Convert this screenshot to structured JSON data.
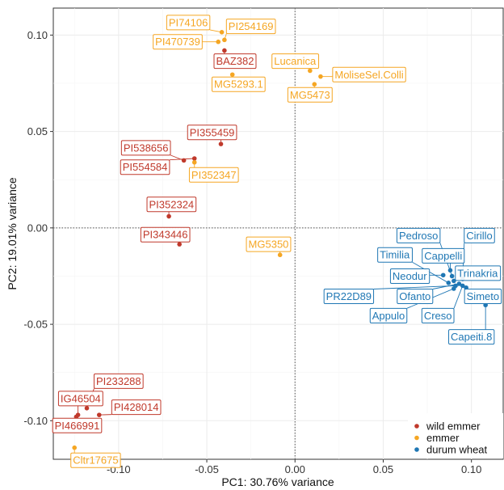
{
  "chart_data": {
    "type": "scatter",
    "xlabel": "PC1: 30.76% variance",
    "ylabel": "PC2: 19.01% variance",
    "xlim": [
      -0.137,
      0.118
    ],
    "ylim": [
      -0.12,
      0.114
    ],
    "xticks": [
      -0.1,
      -0.05,
      0.0,
      0.05,
      0.1
    ],
    "yticks": [
      -0.1,
      -0.05,
      0.0,
      0.05,
      0.1
    ],
    "xtick_labels": [
      "-0.10",
      "-0.05",
      "0.00",
      "0.05",
      "0.10"
    ],
    "ytick_labels": [
      "-0.10",
      "-0.05",
      "0.00",
      "0.05",
      "0.10"
    ],
    "grid": true,
    "zero_lines": true,
    "legend_position": "bottom-right",
    "series": [
      {
        "name": "wild emmer",
        "color": "#c0392b",
        "points": [
          {
            "label": "BAZ382",
            "x": -0.04,
            "y": 0.092,
            "lx": -0.034,
            "ly": 0.0865
          },
          {
            "label": "PI355459",
            "x": -0.042,
            "y": 0.0435,
            "lx": -0.047,
            "ly": 0.0495
          },
          {
            "label": "PI538656",
            "x": -0.063,
            "y": 0.035,
            "lx": -0.0845,
            "ly": 0.0415
          },
          {
            "label": "PI554584",
            "x": -0.057,
            "y": 0.036,
            "lx": -0.085,
            "ly": 0.0315
          },
          {
            "label": "PI352324",
            "x": -0.0715,
            "y": 0.006,
            "lx": -0.07,
            "ly": 0.0122
          },
          {
            "label": "PI343446",
            "x": -0.0655,
            "y": -0.0085,
            "lx": -0.0735,
            "ly": -0.0035
          },
          {
            "label": "PI233288",
            "x": -0.118,
            "y": -0.0935,
            "lx": -0.1,
            "ly": -0.0795
          },
          {
            "label": "IG46504",
            "x": -0.123,
            "y": -0.097,
            "lx": -0.1215,
            "ly": -0.0885
          },
          {
            "label": "PI428014",
            "x": -0.111,
            "y": -0.097,
            "lx": -0.09,
            "ly": -0.093
          },
          {
            "label": "PI466991",
            "x": -0.124,
            "y": -0.098,
            "lx": -0.1235,
            "ly": -0.1025
          }
        ]
      },
      {
        "name": "emmer",
        "color": "#f5a623",
        "points": [
          {
            "label": "PI74106",
            "x": -0.0415,
            "y": 0.1015,
            "lx": -0.0605,
            "ly": 0.1065
          },
          {
            "label": "PI254169",
            "x": -0.04,
            "y": 0.0975,
            "lx": -0.025,
            "ly": 0.1045
          },
          {
            "label": "PI470739",
            "x": -0.0435,
            "y": 0.0965,
            "lx": -0.0665,
            "ly": 0.0965
          },
          {
            "label": "MG5293.1",
            "x": -0.0355,
            "y": 0.0795,
            "lx": -0.032,
            "ly": 0.0745
          },
          {
            "label": "Lucanica",
            "x": 0.0085,
            "y": 0.0815,
            "lx": 0.0,
            "ly": 0.0865
          },
          {
            "label": "MoliseSel.Colli",
            "x": 0.0145,
            "y": 0.0785,
            "lx": 0.042,
            "ly": 0.0795
          },
          {
            "label": "MG5473",
            "x": 0.011,
            "y": 0.0745,
            "lx": 0.0085,
            "ly": 0.069
          },
          {
            "label": "PI352347",
            "x": -0.057,
            "y": 0.034,
            "lx": -0.046,
            "ly": 0.0275
          },
          {
            "label": "MG5350",
            "x": -0.0085,
            "y": -0.014,
            "lx": -0.015,
            "ly": -0.0085
          },
          {
            "label": "Cltr17675",
            "x": -0.125,
            "y": -0.114,
            "lx": -0.113,
            "ly": -0.1205
          }
        ]
      },
      {
        "name": "durum wheat",
        "color": "#1f77b4",
        "points": [
          {
            "label": "Pedroso",
            "x": 0.089,
            "y": -0.025,
            "lx": 0.07,
            "ly": -0.004
          },
          {
            "label": "Cirillo",
            "x": 0.095,
            "y": -0.0265,
            "lx": 0.1045,
            "ly": -0.004
          },
          {
            "label": "Timilia",
            "x": 0.087,
            "y": -0.0285,
            "lx": 0.0565,
            "ly": -0.014
          },
          {
            "label": "Cappelli",
            "x": 0.088,
            "y": -0.022,
            "lx": 0.084,
            "ly": -0.0145
          },
          {
            "label": "Trinakria",
            "x": 0.09,
            "y": -0.0275,
            "lx": 0.1035,
            "ly": -0.0235
          },
          {
            "label": "Neodur",
            "x": 0.084,
            "y": -0.0245,
            "lx": 0.065,
            "ly": -0.025
          },
          {
            "label": "PR22D89",
            "x": 0.091,
            "y": -0.03,
            "lx": 0.0305,
            "ly": -0.0355
          },
          {
            "label": "Ofanto",
            "x": 0.093,
            "y": -0.029,
            "lx": 0.068,
            "ly": -0.0355
          },
          {
            "label": "Simeto",
            "x": 0.097,
            "y": -0.031,
            "lx": 0.1065,
            "ly": -0.0355
          },
          {
            "label": "Appulo",
            "x": 0.09,
            "y": -0.0315,
            "lx": 0.053,
            "ly": -0.0455
          },
          {
            "label": "Creso",
            "x": 0.095,
            "y": -0.03,
            "lx": 0.081,
            "ly": -0.0455
          },
          {
            "label": "Capeiti.8",
            "x": 0.108,
            "y": -0.04,
            "lx": 0.1,
            "ly": -0.0565
          }
        ]
      }
    ]
  }
}
